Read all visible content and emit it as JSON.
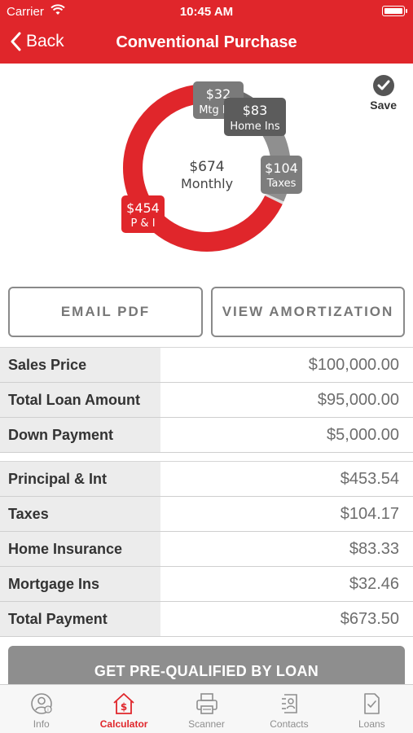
{
  "status": {
    "carrier": "Carrier",
    "time": "10:45 AM"
  },
  "nav": {
    "back_label": "Back",
    "title": "Conventional Purchase"
  },
  "save_label": "Save",
  "donut": {
    "center_amount": "$674",
    "center_label": "Monthly",
    "segments": [
      {
        "amount": "$454",
        "label": "P & I",
        "value": 453.54,
        "color": "#e0262b"
      },
      {
        "amount": "$104",
        "label": "Taxes",
        "value": 104.17,
        "color": "#8f8f8f"
      },
      {
        "amount": "$83",
        "label": "Home Ins",
        "value": 83.33,
        "color": "#6b6b6b"
      },
      {
        "amount": "$32",
        "label": "Mtg Ins",
        "value": 32.46,
        "color": "#7a7a7a"
      }
    ]
  },
  "buttons": {
    "email_pdf": "EMAIL PDF",
    "view_amortization": "VIEW AMORTIZATION"
  },
  "loan_rows": [
    {
      "label": "Sales Price",
      "value": "$100,000.00"
    },
    {
      "label": "Total Loan Amount",
      "value": "$95,000.00"
    },
    {
      "label": "Down Payment",
      "value": "$5,000.00"
    }
  ],
  "payment_rows": [
    {
      "label": "Principal & Int",
      "value": "$453.54"
    },
    {
      "label": "Taxes",
      "value": "$104.17"
    },
    {
      "label": "Home Insurance",
      "value": "$83.33"
    },
    {
      "label": "Mortgage Ins",
      "value": "$32.46"
    },
    {
      "label": "Total Payment",
      "value": "$673.50"
    }
  ],
  "cta_label": "GET PRE-QUALIFIED BY LOAN",
  "tabs": [
    {
      "label": "Info",
      "icon": "info-person-icon",
      "active": false
    },
    {
      "label": "Calculator",
      "icon": "calculator-house-icon",
      "active": true
    },
    {
      "label": "Scanner",
      "icon": "printer-icon",
      "active": false
    },
    {
      "label": "Contacts",
      "icon": "contacts-icon",
      "active": false
    },
    {
      "label": "Loans",
      "icon": "document-check-icon",
      "active": false
    }
  ]
}
